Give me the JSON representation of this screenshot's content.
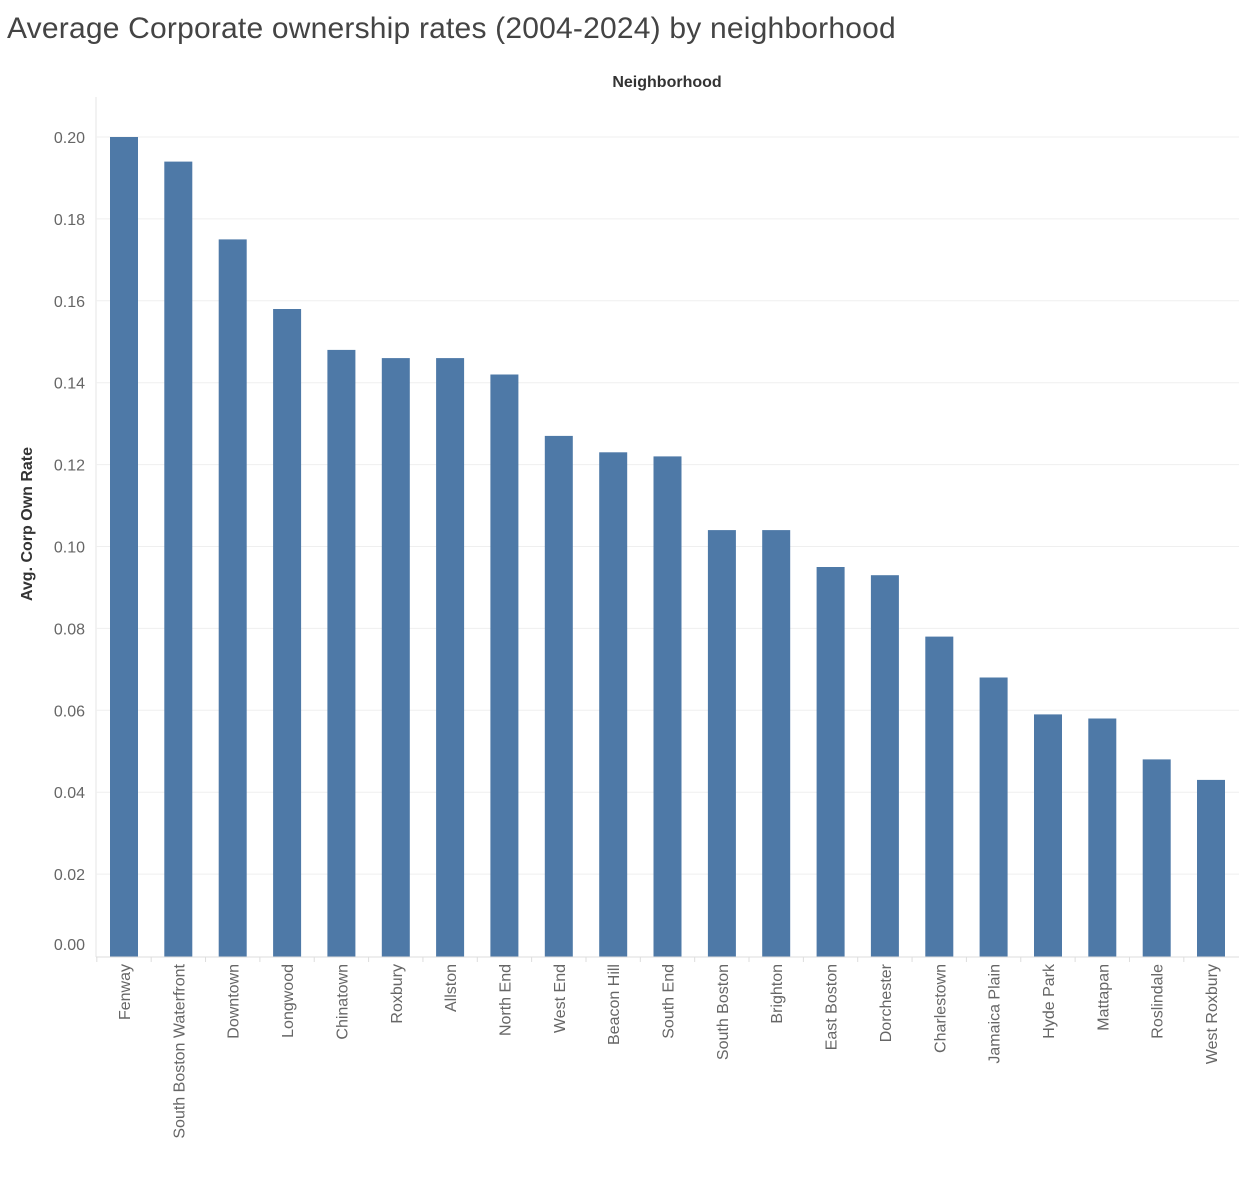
{
  "chart_data": {
    "type": "bar",
    "title": "Average Corporate ownership rates (2004-2024) by neighborhood",
    "xlabel": "Neighborhood",
    "ylabel": "Avg. Corp Own Rate",
    "categories": [
      "Fenway",
      "South Boston Waterfront",
      "Downtown",
      "Longwood",
      "Chinatown",
      "Roxbury",
      "Allston",
      "North End",
      "West End",
      "Beacon Hill",
      "South End",
      "South Boston",
      "Brighton",
      "East Boston",
      "Dorchester",
      "Charlestown",
      "Jamaica Plain",
      "Hyde Park",
      "Mattapan",
      "Roslindale",
      "West Roxbury"
    ],
    "values": [
      0.2,
      0.194,
      0.175,
      0.158,
      0.148,
      0.146,
      0.146,
      0.142,
      0.127,
      0.123,
      0.122,
      0.104,
      0.104,
      0.095,
      0.093,
      0.078,
      0.068,
      0.059,
      0.058,
      0.048,
      0.043
    ],
    "yticks": [
      "0.00",
      "0.02",
      "0.04",
      "0.06",
      "0.08",
      "0.10",
      "0.12",
      "0.14",
      "0.16",
      "0.18",
      "0.20"
    ],
    "ylim": [
      0,
      0.2
    ],
    "grid": true,
    "bar_color": "#4e79a7",
    "grid_color": "#efefef"
  }
}
